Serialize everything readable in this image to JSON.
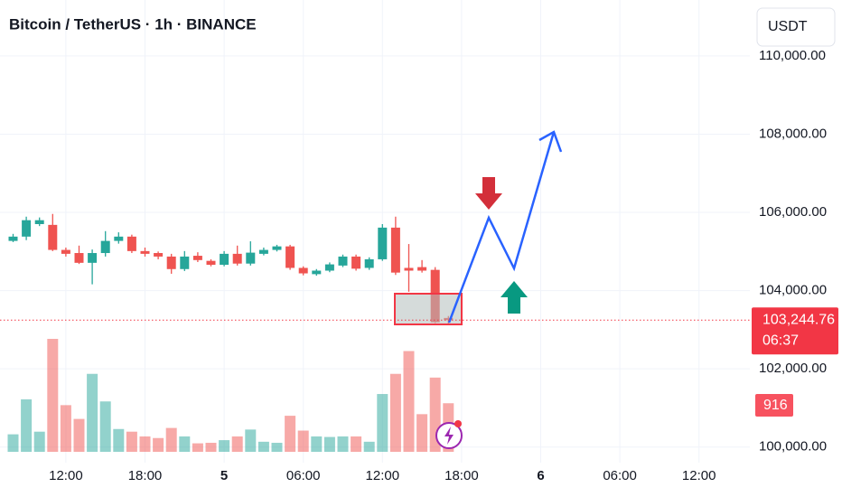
{
  "chart_data": {
    "type": "candlestick",
    "title": "Bitcoin / TetherUS · 1h · BINANCE",
    "currency": "USDT",
    "open": [
      105270,
      105380,
      105700,
      105680,
      105040,
      104960,
      104710,
      104960,
      105270,
      105380,
      105010,
      104960,
      104870,
      104550,
      104890,
      104760,
      104660,
      104940,
      104690,
      104940,
      105040,
      105130,
      104580,
      104420,
      104510,
      104640,
      104870,
      104580,
      104800,
      105610,
      104580,
      104600,
      104530,
      103300
    ],
    "high": [
      105450,
      105890,
      105870,
      105960,
      105100,
      105150,
      105050,
      105520,
      105490,
      105430,
      105100,
      105000,
      104940,
      105010,
      104980,
      104800,
      105010,
      105150,
      105260,
      105100,
      105170,
      105170,
      104620,
      104550,
      104720,
      104920,
      104920,
      104850,
      105700,
      105890,
      105190,
      104780,
      104600,
      103350
    ],
    "low": [
      105240,
      105290,
      105650,
      105010,
      104870,
      104680,
      104160,
      104870,
      105200,
      104960,
      104870,
      104800,
      104430,
      104500,
      104730,
      104620,
      104620,
      104640,
      104640,
      104900,
      105000,
      104530,
      104390,
      104380,
      104470,
      104600,
      104510,
      104530,
      104760,
      104400,
      103970,
      104460,
      103170,
      103150
    ],
    "close": [
      105380,
      105800,
      105800,
      105040,
      104940,
      104710,
      104960,
      105270,
      105380,
      105010,
      104940,
      104870,
      104550,
      104870,
      104780,
      104660,
      104940,
      104690,
      104970,
      105040,
      105130,
      104580,
      104440,
      104510,
      104670,
      104870,
      104560,
      104800,
      105610,
      104460,
      104510,
      104510,
      103190,
      103244.76
    ],
    "volume": [
      330,
      990,
      380,
      2130,
      880,
      620,
      1470,
      950,
      430,
      380,
      290,
      260,
      450,
      290,
      160,
      170,
      220,
      290,
      420,
      190,
      170,
      680,
      400,
      290,
      280,
      290,
      290,
      190,
      1090,
      1470,
      1900,
      710,
      1400,
      916
    ],
    "up_color": "#26a69a",
    "down_color": "#ef5350",
    "ylim": [
      99600,
      111430
    ],
    "yticks": [
      {
        "value": 100000,
        "label": "100,000.00"
      },
      {
        "value": 102000,
        "label": "102,000.00"
      },
      {
        "value": 104000,
        "label": "104,000.00"
      },
      {
        "value": 106000,
        "label": "106,000.00"
      },
      {
        "value": 108000,
        "label": "108,000.00"
      },
      {
        "value": 110000,
        "label": "110,000.00"
      }
    ],
    "xticks": [
      {
        "value": 4,
        "label": "12:00"
      },
      {
        "value": 10,
        "label": "18:00"
      },
      {
        "value": 16,
        "label": "5"
      },
      {
        "value": 22,
        "label": "06:00"
      },
      {
        "value": 28,
        "label": "12:00"
      },
      {
        "value": 34,
        "label": "18:00"
      },
      {
        "value": 40,
        "label": "6"
      },
      {
        "value": 46,
        "label": "06:00"
      },
      {
        "value": 52,
        "label": "12:00"
      }
    ],
    "last_price": {
      "value": 103244.76,
      "label": "103,244.76"
    },
    "countdown": "06:37",
    "grid": true
  }
}
